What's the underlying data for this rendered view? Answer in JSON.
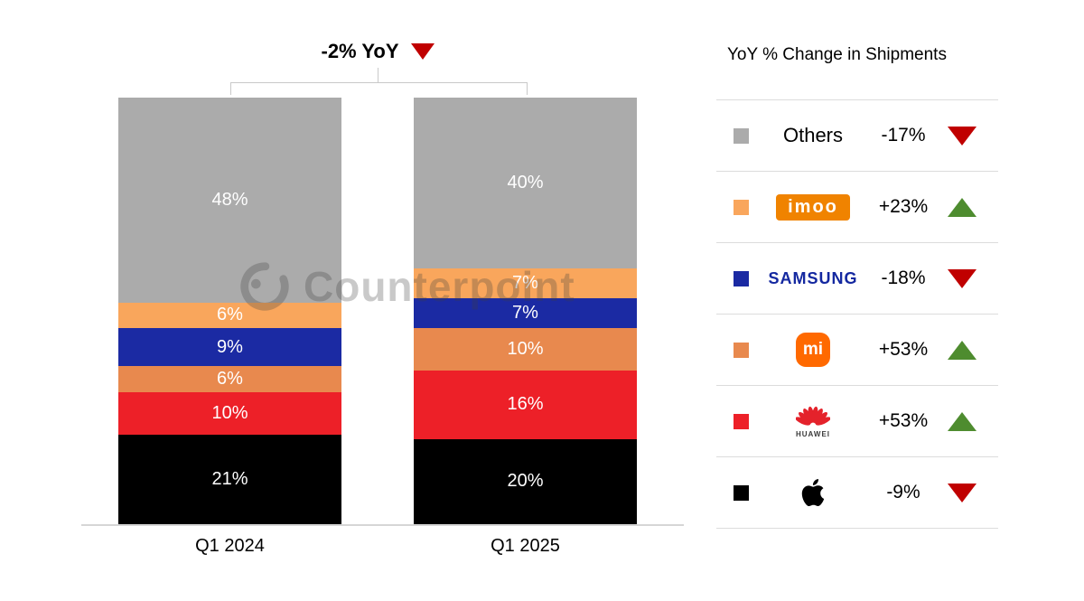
{
  "title": {
    "label": "-2% YoY",
    "direction": "down"
  },
  "watermark": {
    "text": "Counterpoint"
  },
  "axis": {
    "categories": [
      "Q1 2024",
      "Q1 2025"
    ]
  },
  "legend": {
    "title": "YoY % Change in Shipments",
    "rows": [
      {
        "brand": "Others",
        "logo_style": "plain-text",
        "logo_text": "Others",
        "change": "-17%",
        "direction": "down",
        "swatch": "#ABABAB"
      },
      {
        "brand": "imoo",
        "logo_style": "imoo-badge",
        "logo_text": "imoo",
        "change": "+23%",
        "direction": "up",
        "swatch": "#F9A65C"
      },
      {
        "brand": "Samsung",
        "logo_style": "samsung-wordmark",
        "logo_text": "SAMSUNG",
        "change": "-18%",
        "direction": "down",
        "swatch": "#1B2AA3"
      },
      {
        "brand": "Xiaomi",
        "logo_style": "mi-badge",
        "logo_text": "mi",
        "change": "+53%",
        "direction": "up",
        "swatch": "#E8894E"
      },
      {
        "brand": "Huawei",
        "logo_style": "huawei-flower",
        "logo_text": "HUAWEI",
        "change": "+53%",
        "direction": "up",
        "swatch": "#ED2028"
      },
      {
        "brand": "Apple",
        "logo_style": "apple-glyph",
        "logo_text": "",
        "change": "-9%",
        "direction": "down",
        "swatch": "#000000"
      }
    ]
  },
  "chart_data": {
    "type": "bar",
    "stacked": true,
    "unit": "%",
    "title": "-2% YoY",
    "legend_title": "YoY % Change in Shipments",
    "categories": [
      "Q1 2024",
      "Q1 2025"
    ],
    "stack_order": "top-to-bottom as listed",
    "series": [
      {
        "name": "Others",
        "color": "#ABABAB",
        "values": [
          48,
          40
        ],
        "yoy_change": "-17%"
      },
      {
        "name": "imoo",
        "color": "#F9A65C",
        "values": [
          6,
          7
        ],
        "yoy_change": "+23%"
      },
      {
        "name": "Samsung",
        "color": "#1B2AA3",
        "values": [
          9,
          7
        ],
        "yoy_change": "-18%"
      },
      {
        "name": "Xiaomi",
        "color": "#E8894E",
        "values": [
          6,
          10
        ],
        "yoy_change": "+53%"
      },
      {
        "name": "Huawei",
        "color": "#ED2028",
        "values": [
          10,
          16
        ],
        "yoy_change": "+53%"
      },
      {
        "name": "Apple",
        "color": "#000000",
        "values": [
          21,
          20
        ],
        "yoy_change": "-9%"
      }
    ],
    "ylim": [
      0,
      100
    ],
    "grid": false,
    "legend_position": "right",
    "colors": {
      "negative_triangle": "#C00000",
      "positive_triangle": "#4E8C2F",
      "divider": "#DCDCDC",
      "axis_line": "#D6D6D6"
    }
  }
}
